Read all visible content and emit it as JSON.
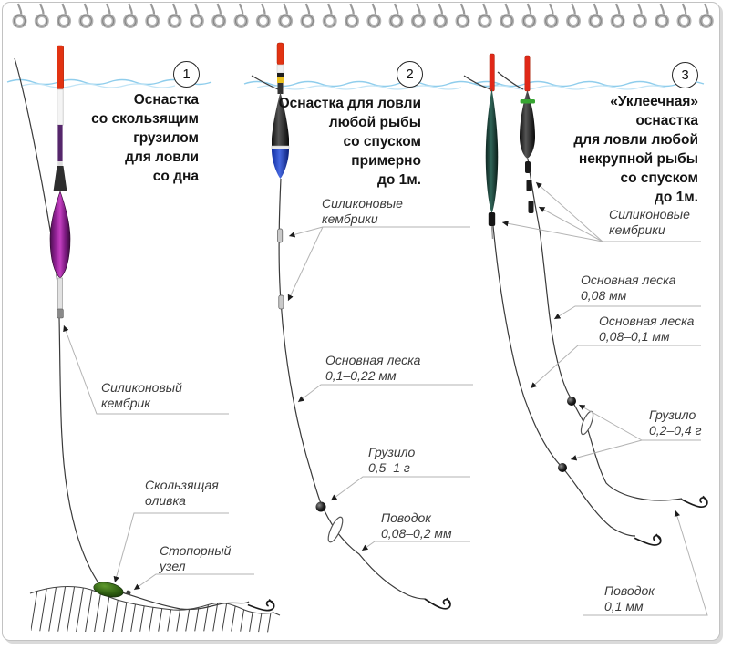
{
  "page": {
    "kind": "notebook-sheet-diagram",
    "colors": {
      "water": "#9fd3ee",
      "leader_line": "#b3b3b3",
      "main_line": "#3a3a3a",
      "title_text": "#141414",
      "label_text": "#3b3b3b",
      "float_red_tip": "#e23312",
      "float_purple_body": "#a02a9e",
      "float_blue_bulb": "#2a49c8",
      "float_teal_body": "#27544a",
      "float_yellow_band": "#e8c020",
      "olive_green": "#356b15",
      "spiral_gray": "#b0b0b0"
    }
  },
  "panels": [
    {
      "badge": "1",
      "title": "Оснастка\nсо скользящим\nгрузилом\nдля ловли\nсо дна",
      "labels": [
        {
          "text": "Силиконовый\nкембрик"
        },
        {
          "text": "Скользящая\nоливка"
        },
        {
          "text": "Стопорный\nузел"
        }
      ]
    },
    {
      "badge": "2",
      "title": "Оснастка для ловли\nлюбой рыбы\nсо спуском\nпримерно\nдо 1м.",
      "labels": [
        {
          "text": "Силиконовые\nкембрики"
        },
        {
          "text": "Основная леска\n0,1–0,22 мм"
        },
        {
          "text": "Грузило\n0,5–1 г"
        },
        {
          "text": "Поводок\n0,08–0,2 мм"
        }
      ]
    },
    {
      "badge": "3",
      "title": "«Уклеечная»\nоснастка\nдля ловли любой\nнекрупной рыбы\nсо спуском\nдо 1м.",
      "labels": [
        {
          "text": "Силиконовые\nкембрики"
        },
        {
          "text": "Основная леска\n0,08 мм"
        },
        {
          "text": "Основная леска\n0,08–0,1 мм"
        },
        {
          "text": "Грузило\n0,2–0,4 г"
        },
        {
          "text": "Поводок\n0,1 мм"
        }
      ]
    }
  ]
}
